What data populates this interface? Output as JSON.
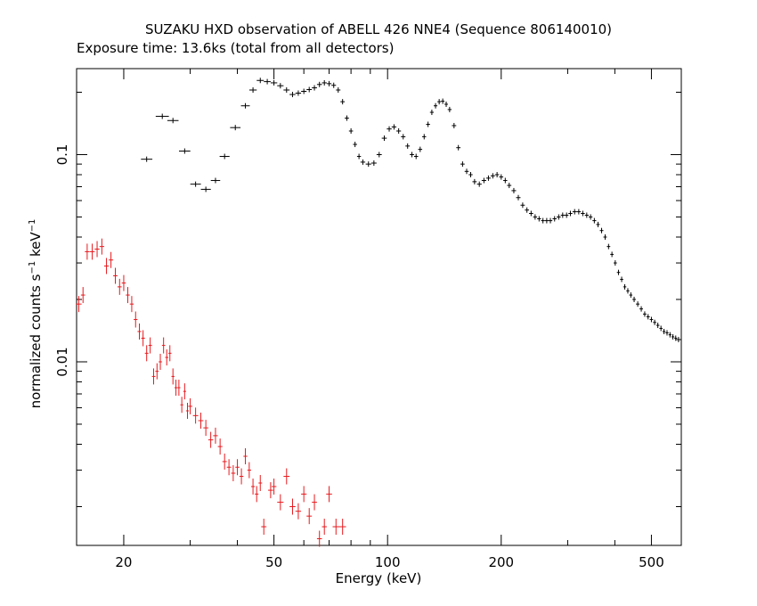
{
  "chart_data": {
    "type": "scatter",
    "title": "SUZAKU HXD observation of ABELL 426 NNE4 (Sequence 806140010)",
    "subtitle": "Exposure time: 13.6ks (total from all detectors)",
    "xlabel": "Energy (keV)",
    "ylabel_main": "normalized counts s",
    "ylabel_sup1": "−1",
    "ylabel_mid": " keV",
    "ylabel_sup2": "−1",
    "xscale": "log",
    "yscale": "log",
    "xlim": [
      15,
      600
    ],
    "ylim": [
      0.0013,
      0.26
    ],
    "x_ticks": [
      20,
      50,
      100,
      200,
      500
    ],
    "x_tick_labels": [
      "20",
      "50",
      "100",
      "200",
      "500"
    ],
    "y_ticks": [
      0.01,
      0.1
    ],
    "y_tick_labels": [
      "0.01",
      "0.1"
    ],
    "grid": false,
    "legend": "none",
    "series": [
      {
        "color": "#000000",
        "points": [
          [
            23,
            0.095
          ],
          [
            25.3,
            0.153
          ],
          [
            27,
            0.146
          ],
          [
            29,
            0.104
          ],
          [
            31,
            0.072
          ],
          [
            33,
            0.068
          ],
          [
            35,
            0.075
          ],
          [
            37,
            0.098
          ],
          [
            39.5,
            0.135
          ],
          [
            42,
            0.172
          ],
          [
            44,
            0.205
          ],
          [
            46,
            0.228
          ],
          [
            48,
            0.225
          ],
          [
            50,
            0.222
          ],
          [
            52,
            0.215
          ],
          [
            54,
            0.205
          ],
          [
            56,
            0.195
          ],
          [
            58,
            0.198
          ],
          [
            60,
            0.202
          ],
          [
            62,
            0.206
          ],
          [
            64,
            0.21
          ],
          [
            66,
            0.218
          ],
          [
            68,
            0.222
          ],
          [
            70,
            0.22
          ],
          [
            72,
            0.216
          ],
          [
            74,
            0.205
          ],
          [
            76,
            0.18
          ],
          [
            78,
            0.15
          ],
          [
            80,
            0.13
          ],
          [
            82,
            0.112
          ],
          [
            84,
            0.098
          ],
          [
            86,
            0.092
          ],
          [
            89,
            0.09
          ],
          [
            92,
            0.091
          ],
          [
            95,
            0.1
          ],
          [
            98,
            0.12
          ],
          [
            101,
            0.133
          ],
          [
            104,
            0.136
          ],
          [
            107,
            0.13
          ],
          [
            110,
            0.122
          ],
          [
            113,
            0.11
          ],
          [
            116,
            0.1
          ],
          [
            119,
            0.098
          ],
          [
            122,
            0.106
          ],
          [
            125,
            0.122
          ],
          [
            128,
            0.14
          ],
          [
            131,
            0.16
          ],
          [
            134,
            0.172
          ],
          [
            137,
            0.18
          ],
          [
            140,
            0.181
          ],
          [
            143,
            0.175
          ],
          [
            146,
            0.165
          ],
          [
            150,
            0.138
          ],
          [
            154,
            0.108
          ],
          [
            158,
            0.09
          ],
          [
            162,
            0.083
          ],
          [
            166,
            0.08
          ],
          [
            170,
            0.074
          ],
          [
            175,
            0.072
          ],
          [
            180,
            0.075
          ],
          [
            185,
            0.077
          ],
          [
            190,
            0.079
          ],
          [
            195,
            0.08
          ],
          [
            200,
            0.078
          ],
          [
            205,
            0.075
          ],
          [
            210,
            0.071
          ],
          [
            216,
            0.067
          ],
          [
            222,
            0.062
          ],
          [
            228,
            0.057
          ],
          [
            234,
            0.054
          ],
          [
            240,
            0.052
          ],
          [
            246,
            0.05
          ],
          [
            252,
            0.049
          ],
          [
            258,
            0.048
          ],
          [
            264,
            0.048
          ],
          [
            270,
            0.048
          ],
          [
            277,
            0.049
          ],
          [
            284,
            0.05
          ],
          [
            291,
            0.051
          ],
          [
            298,
            0.051
          ],
          [
            305,
            0.052
          ],
          [
            313,
            0.053
          ],
          [
            321,
            0.053
          ],
          [
            329,
            0.052
          ],
          [
            337,
            0.051
          ],
          [
            345,
            0.05
          ],
          [
            353,
            0.048
          ],
          [
            361,
            0.046
          ],
          [
            369,
            0.043
          ],
          [
            377,
            0.04
          ],
          [
            385,
            0.036
          ],
          [
            393,
            0.033
          ],
          [
            401,
            0.03
          ],
          [
            409,
            0.027
          ],
          [
            417,
            0.025
          ],
          [
            425,
            0.023
          ],
          [
            433,
            0.022
          ],
          [
            441,
            0.021
          ],
          [
            450,
            0.02
          ],
          [
            460,
            0.019
          ],
          [
            470,
            0.018
          ],
          [
            480,
            0.017
          ],
          [
            490,
            0.0165
          ],
          [
            500,
            0.016
          ],
          [
            510,
            0.0155
          ],
          [
            520,
            0.015
          ],
          [
            530,
            0.0145
          ],
          [
            540,
            0.014
          ],
          [
            550,
            0.0138
          ],
          [
            560,
            0.0135
          ],
          [
            570,
            0.0132
          ],
          [
            580,
            0.013
          ],
          [
            590,
            0.0128
          ]
        ]
      },
      {
        "color": "#e8191d",
        "points": [
          [
            15.2,
            0.019
          ],
          [
            15.6,
            0.021
          ],
          [
            16,
            0.034
          ],
          [
            16.5,
            0.034
          ],
          [
            17,
            0.035
          ],
          [
            17.5,
            0.036
          ],
          [
            18,
            0.029
          ],
          [
            18.5,
            0.031
          ],
          [
            19,
            0.026
          ],
          [
            19.5,
            0.023
          ],
          [
            20,
            0.024
          ],
          [
            20.5,
            0.021
          ],
          [
            21,
            0.019
          ],
          [
            21.5,
            0.016
          ],
          [
            22,
            0.014
          ],
          [
            22.5,
            0.013
          ],
          [
            23,
            0.011
          ],
          [
            23.5,
            0.012
          ],
          [
            24,
            0.0085
          ],
          [
            24.5,
            0.009
          ],
          [
            25,
            0.01
          ],
          [
            25.5,
            0.012
          ],
          [
            26,
            0.0105
          ],
          [
            26.5,
            0.011
          ],
          [
            27,
            0.0085
          ],
          [
            27.5,
            0.0075
          ],
          [
            28,
            0.0075
          ],
          [
            28.5,
            0.0062
          ],
          [
            29,
            0.0072
          ],
          [
            29.5,
            0.0058
          ],
          [
            30,
            0.0061
          ],
          [
            31,
            0.0055
          ],
          [
            32,
            0.0052
          ],
          [
            33,
            0.0048
          ],
          [
            34,
            0.0042
          ],
          [
            35,
            0.0044
          ],
          [
            36,
            0.0039
          ],
          [
            37,
            0.0033
          ],
          [
            38,
            0.0031
          ],
          [
            39,
            0.0029
          ],
          [
            40,
            0.0031
          ],
          [
            41,
            0.0028
          ],
          [
            42,
            0.0035
          ],
          [
            43,
            0.003
          ],
          [
            44,
            0.0025
          ],
          [
            45,
            0.0023
          ],
          [
            46,
            0.0026
          ],
          [
            47,
            0.0016
          ],
          [
            49,
            0.0024
          ],
          [
            50,
            0.0025
          ],
          [
            52,
            0.0021
          ],
          [
            54,
            0.0028
          ],
          [
            56,
            0.002
          ],
          [
            58,
            0.0019
          ],
          [
            60,
            0.0023
          ],
          [
            62,
            0.0018
          ],
          [
            64,
            0.0021
          ],
          [
            66,
            0.0014
          ],
          [
            68,
            0.0016
          ],
          [
            70,
            0.0023
          ],
          [
            73,
            0.0016
          ],
          [
            76,
            0.0016
          ]
        ]
      }
    ]
  }
}
